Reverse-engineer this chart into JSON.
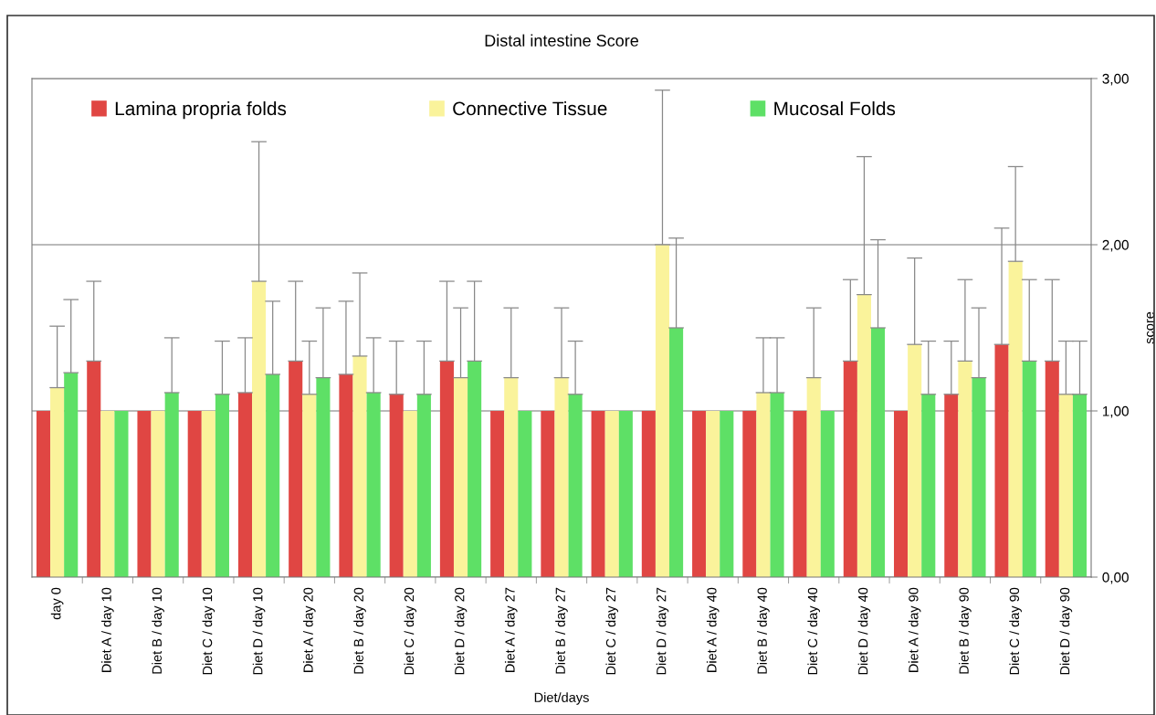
{
  "chart_data": {
    "type": "bar",
    "title": "Distal intestine Score",
    "xlabel": "Diet/days",
    "y2label": "score",
    "categories": [
      "day 0",
      "Diet A / day 10",
      "Diet B / day 10",
      "Diet C / day 10",
      "Diet D / day 10",
      "Diet A / day 20",
      "Diet B / day 20",
      "Diet C / day 20",
      "Diet D / day 20",
      "Diet A / day 27",
      "Diet B / day 27",
      "Diet C / day 27",
      "Diet D / day 27",
      "Diet A / day 40",
      "Diet B / day 40",
      "Diet C / day 40",
      "Diet D / day 40",
      "Diet A / day 90",
      "Diet B / day 90",
      "Diet C / day 90",
      "Diet D / day 90"
    ],
    "series": [
      {
        "name": "Lamina propria folds",
        "color": "#e04643",
        "axis": "y2",
        "values": [
          1.0,
          1.3,
          1.0,
          1.0,
          1.11,
          1.3,
          1.22,
          1.1,
          1.3,
          1.0,
          1.0,
          1.0,
          1.0,
          1.0,
          1.0,
          1.0,
          1.3,
          1.0,
          1.1,
          1.4,
          1.3
        ],
        "errors": [
          null,
          [
            1.3,
            1.78
          ],
          null,
          null,
          [
            1.11,
            1.44
          ],
          [
            1.3,
            1.78
          ],
          [
            1.22,
            1.66
          ],
          [
            1.1,
            1.42
          ],
          [
            1.3,
            1.78
          ],
          null,
          null,
          null,
          null,
          null,
          null,
          null,
          [
            1.3,
            1.79
          ],
          null,
          [
            1.1,
            1.42
          ],
          [
            1.4,
            2.1
          ],
          [
            1.3,
            1.79
          ]
        ]
      },
      {
        "name": "Connective Tissue",
        "color": "#faf39b",
        "axis": "y2",
        "values": [
          1.14,
          1.0,
          1.0,
          1.0,
          1.78,
          1.1,
          1.33,
          1.0,
          1.2,
          1.2,
          1.2,
          1.0,
          2.0,
          1.0,
          1.11,
          1.2,
          1.7,
          1.4,
          1.3,
          1.9,
          1.1
        ],
        "errors": [
          [
            1.14,
            1.51
          ],
          null,
          null,
          null,
          [
            1.78,
            2.62
          ],
          [
            1.1,
            1.42
          ],
          [
            1.33,
            1.83
          ],
          null,
          [
            1.2,
            1.62
          ],
          [
            1.2,
            1.62
          ],
          [
            1.2,
            1.62
          ],
          null,
          [
            2.0,
            2.93
          ],
          null,
          [
            1.11,
            1.44
          ],
          [
            1.2,
            1.62
          ],
          [
            1.7,
            2.53
          ],
          [
            1.4,
            1.92
          ],
          [
            1.3,
            1.79
          ],
          [
            1.9,
            2.47
          ],
          [
            1.1,
            1.42
          ]
        ]
      },
      {
        "name": "Mucosal Folds",
        "color": "#5ee066",
        "axis": "y2",
        "values": [
          1.23,
          1.0,
          1.11,
          1.1,
          1.22,
          1.2,
          1.11,
          1.1,
          1.3,
          1.0,
          1.1,
          1.0,
          1.5,
          1.0,
          1.11,
          1.0,
          1.5,
          1.1,
          1.2,
          1.3,
          1.1
        ],
        "errors": [
          [
            1.23,
            1.67
          ],
          null,
          [
            1.11,
            1.44
          ],
          [
            1.1,
            1.42
          ],
          [
            1.22,
            1.66
          ],
          [
            1.2,
            1.62
          ],
          [
            1.11,
            1.44
          ],
          [
            1.1,
            1.42
          ],
          [
            1.3,
            1.78
          ],
          null,
          [
            1.1,
            1.42
          ],
          null,
          [
            1.5,
            2.04
          ],
          null,
          [
            1.11,
            1.44
          ],
          null,
          [
            1.5,
            2.03
          ],
          [
            1.1,
            1.42
          ],
          [
            1.2,
            1.62
          ],
          [
            1.3,
            1.79
          ],
          [
            1.1,
            1.42
          ]
        ]
      }
    ],
    "y2lim": [
      0,
      3
    ],
    "y2ticks": [
      {
        "value": 0,
        "label": "0,00"
      },
      {
        "value": 1,
        "label": "1,00"
      },
      {
        "value": 2,
        "label": "2,00"
      },
      {
        "value": 3,
        "label": "3,00"
      }
    ],
    "grid": "y",
    "legend": "top left"
  }
}
